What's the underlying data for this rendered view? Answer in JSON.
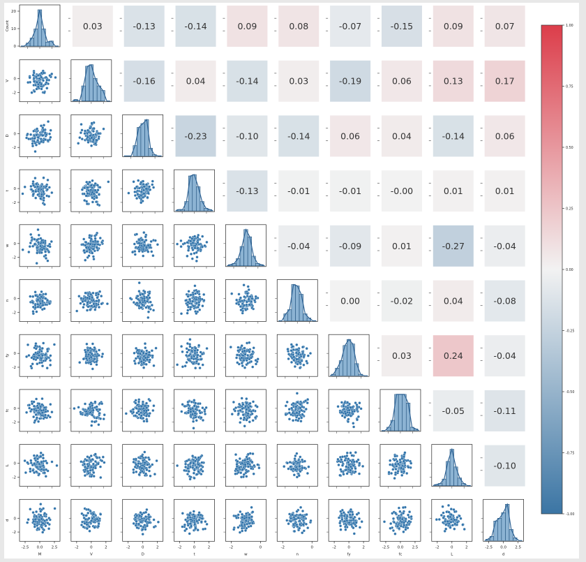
{
  "chart_data": {
    "type": "pairplot",
    "title": "",
    "variables": [
      "M",
      "V",
      "D",
      "t",
      "w",
      "n",
      "fy",
      "fc",
      "L",
      "d"
    ],
    "diagonal": "histogram with KDE",
    "lower_triangle": "scatter",
    "upper_triangle": "correlation heatmap cells",
    "correlations": {
      "V": {
        "M": "0.03"
      },
      "D": {
        "M": "-0.13",
        "V": "-0.16"
      },
      "t": {
        "M": "-0.14",
        "V": "0.04",
        "D": "-0.23"
      },
      "w": {
        "M": "0.09",
        "V": "-0.14",
        "D": "-0.10",
        "t": "-0.13"
      },
      "n": {
        "M": "0.08",
        "V": "0.03",
        "D": "-0.14",
        "t": "-0.01",
        "w": "-0.04"
      },
      "fy": {
        "M": "-0.07",
        "V": "-0.19",
        "D": "0.06",
        "t": "-0.01",
        "w": "-0.09",
        "n": "0.00"
      },
      "fc": {
        "M": "-0.15",
        "V": "0.06",
        "D": "0.04",
        "t": "-0.00",
        "w": "0.01",
        "n": "-0.02",
        "fy": "0.03"
      },
      "L": {
        "M": "0.09",
        "V": "0.13",
        "D": "-0.14",
        "t": "0.01",
        "w": "-0.27",
        "n": "0.04",
        "fy": "0.24",
        "fc": "-0.05"
      },
      "d": {
        "M": "0.07",
        "V": "0.17",
        "D": "0.06",
        "t": "0.01",
        "w": "-0.04",
        "n": "-0.08",
        "fy": "-0.04",
        "fc": "-0.11",
        "L": "-0.10"
      }
    },
    "first_row_ylabel": "Count",
    "first_row_yticks": [
      "0",
      "10",
      "20"
    ],
    "row_yticks": [
      "0",
      "-2"
    ],
    "xticks": {
      "M": [
        "-2.5",
        "0.0",
        "2.5"
      ],
      "V": [
        "-2",
        "0",
        "2"
      ],
      "D": [
        "-2",
        "0",
        "2"
      ],
      "t": [
        "-2",
        "0",
        "2"
      ],
      "w": [
        "-2",
        "0"
      ],
      "n": [
        "-2",
        "0"
      ],
      "fy": [
        "-2",
        "0",
        "2"
      ],
      "fc": [
        "-2.5",
        "0.0",
        "2.5"
      ],
      "L": [
        "-2",
        "0",
        "2"
      ],
      "d": [
        "-2.5",
        "0.0",
        "2.5"
      ]
    },
    "colorbar": {
      "range": [
        -1.0,
        1.0
      ],
      "ticks": [
        "1.00",
        "0.75",
        "0.50",
        "0.25",
        "0.00",
        "-0.25",
        "-0.50",
        "-0.75",
        "-1.00"
      ],
      "colors": {
        "negative": "#3b75a4",
        "zero": "#f2f2f2",
        "positive": "#dc3d4a"
      }
    },
    "point_color": "#3174ab",
    "hist_color": "#8cb3d3",
    "kde_color": "#2f6496"
  }
}
